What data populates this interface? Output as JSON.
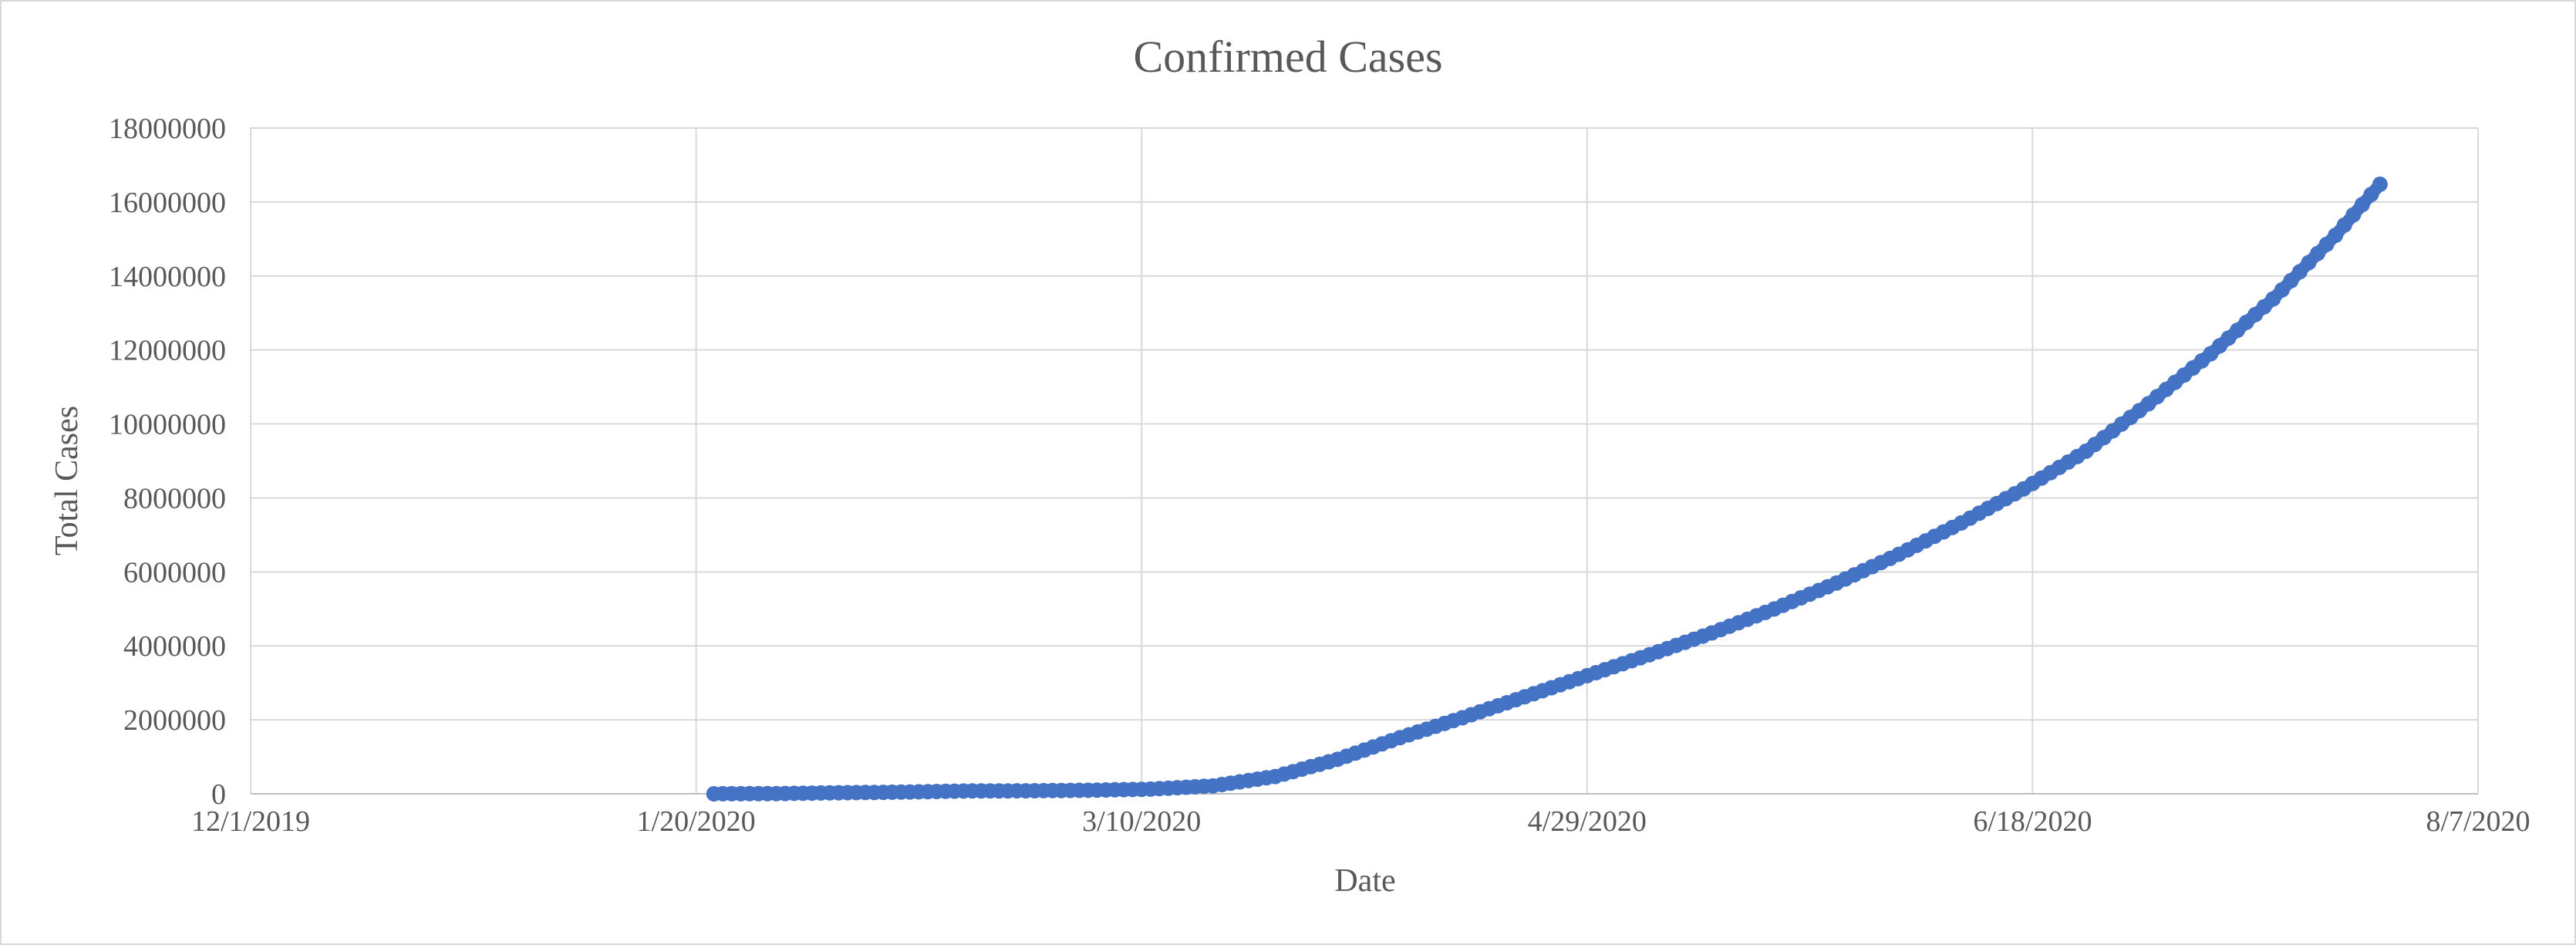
{
  "chart_data": {
    "type": "scatter",
    "title": "Confirmed Cases",
    "xlabel": "Date",
    "ylabel": "Total Cases",
    "x_axis": {
      "type": "date",
      "range": [
        "12/1/2019",
        "8/7/2020"
      ],
      "tick_labels": [
        "12/1/2019",
        "1/20/2020",
        "3/10/2020",
        "4/29/2020",
        "6/18/2020",
        "8/7/2020"
      ]
    },
    "y_axis": {
      "range": [
        0,
        18000000
      ],
      "tick_labels": [
        "0",
        "2000000",
        "4000000",
        "6000000",
        "8000000",
        "10000000",
        "12000000",
        "14000000",
        "16000000",
        "18000000"
      ]
    },
    "grid": {
      "vertical": true,
      "horizontal": true
    },
    "legend": "none",
    "series": [
      {
        "color": "#4472c4",
        "points": [
          {
            "date": "1/22/2020",
            "value": 555
          },
          {
            "date": "1/29/2020",
            "value": 6166
          },
          {
            "date": "2/5/2020",
            "value": 28276
          },
          {
            "date": "2/12/2020",
            "value": 45221
          },
          {
            "date": "2/19/2020",
            "value": 75641
          },
          {
            "date": "2/26/2020",
            "value": 81397
          },
          {
            "date": "3/4/2020",
            "value": 95120
          },
          {
            "date": "3/11/2020",
            "value": 126214
          },
          {
            "date": "3/18/2020",
            "value": 214910
          },
          {
            "date": "3/25/2020",
            "value": 467653
          },
          {
            "date": "4/1/2020",
            "value": 932605
          },
          {
            "date": "4/8/2020",
            "value": 1518126
          },
          {
            "date": "4/15/2020",
            "value": 2056054
          },
          {
            "date": "4/22/2020",
            "value": 2624000
          },
          {
            "date": "4/29/2020",
            "value": 3193886
          },
          {
            "date": "5/6/2020",
            "value": 3759967
          },
          {
            "date": "5/13/2020",
            "value": 4347935
          },
          {
            "date": "5/20/2020",
            "value": 4996472
          },
          {
            "date": "5/27/2020",
            "value": 5698757
          },
          {
            "date": "6/3/2020",
            "value": 6475504
          },
          {
            "date": "6/10/2020",
            "value": 7322924
          },
          {
            "date": "6/17/2020",
            "value": 8242999
          },
          {
            "date": "6/24/2020",
            "value": 9262720
          },
          {
            "date": "7/1/2020",
            "value": 10546000
          },
          {
            "date": "7/8/2020",
            "value": 11900000
          },
          {
            "date": "7/15/2020",
            "value": 13380000
          },
          {
            "date": "7/22/2020",
            "value": 15100000
          },
          {
            "date": "7/27/2020",
            "value": 16480000
          }
        ]
      }
    ]
  }
}
